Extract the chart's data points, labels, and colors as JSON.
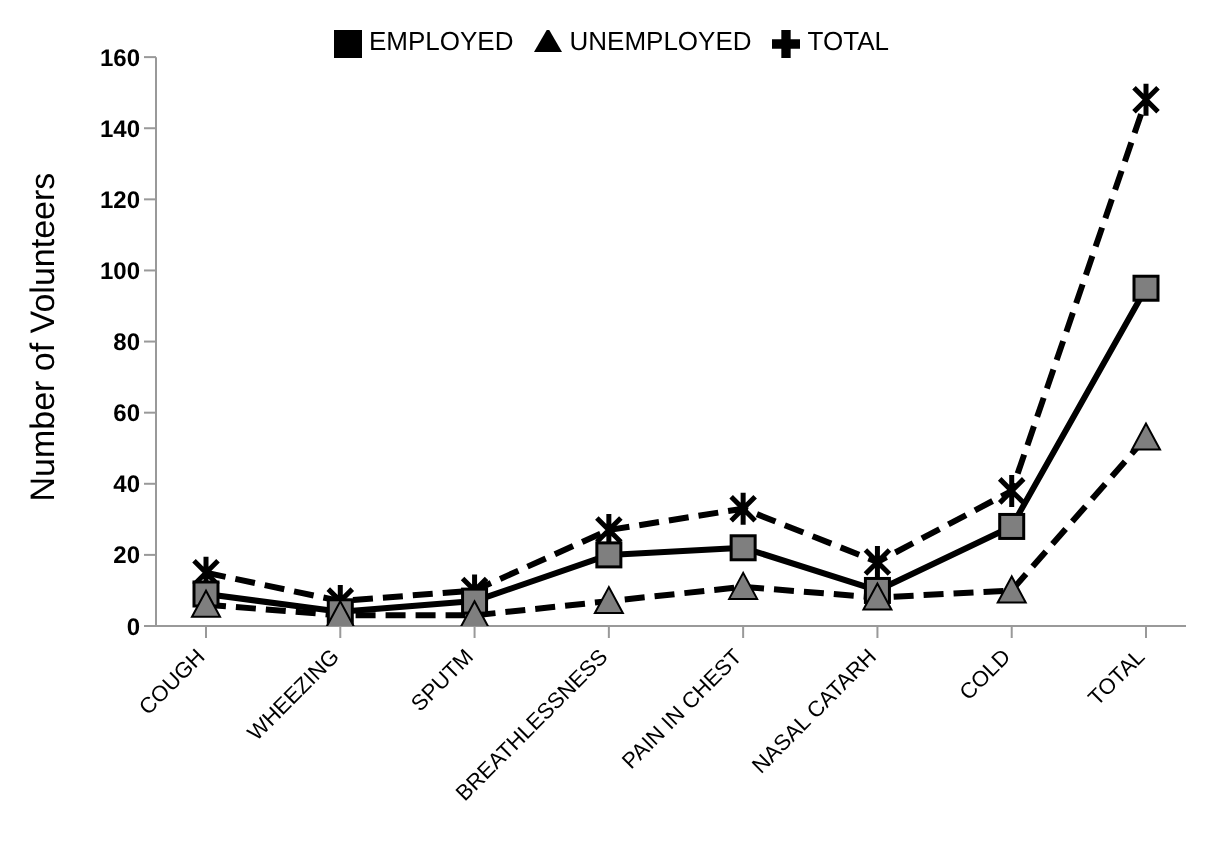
{
  "chart_data": {
    "type": "line",
    "ylabel": "Number  of  Volunteers",
    "categories": [
      "COUGH",
      "WHEEZING",
      "SPUTM",
      "BREATHLESSNESS",
      "PAIN IN CHEST",
      "NASAL CATARH",
      "COLD",
      "TOTAL"
    ],
    "series": [
      {
        "name": "EMPLOYED",
        "color": "#000000",
        "marker": "square",
        "line_style": "solid",
        "values": [
          9,
          4,
          7,
          20,
          22,
          10,
          28,
          95
        ]
      },
      {
        "name": "UNEMPLOYED",
        "color": "#000000",
        "marker": "triangle",
        "line_style": "dashed",
        "values": [
          6,
          3,
          3,
          7,
          11,
          8,
          10,
          53
        ]
      },
      {
        "name": "TOTAL",
        "color": "#000000",
        "marker": "cross",
        "line_style": "dashed",
        "values": [
          15,
          7,
          10,
          27,
          33,
          18,
          38,
          148
        ]
      }
    ],
    "ylim": [
      0,
      160
    ],
    "yticks": [
      0,
      20,
      40,
      60,
      80,
      100,
      120,
      140,
      160
    ],
    "grid": false,
    "legend": "top"
  }
}
